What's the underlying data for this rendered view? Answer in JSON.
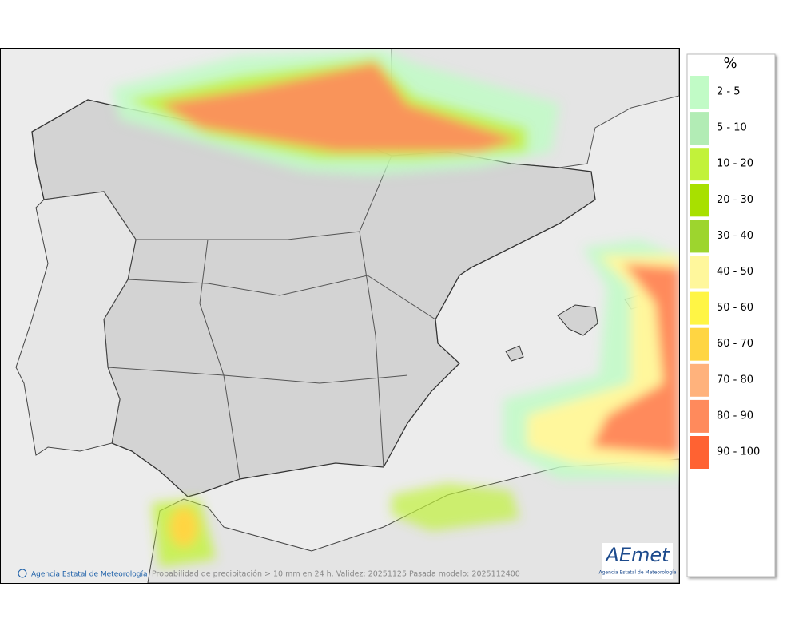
{
  "legend": {
    "title": "%",
    "items": [
      {
        "label": "2 - 5",
        "color": "#c1fbc6"
      },
      {
        "label": "5 - 10",
        "color": "#b2ecb5"
      },
      {
        "label": "10 - 20",
        "color": "#c2f23a"
      },
      {
        "label": "20 - 30",
        "color": "#a8e000"
      },
      {
        "label": "30 - 40",
        "color": "#9dd52e"
      },
      {
        "label": "40 - 50",
        "color": "#fff79c"
      },
      {
        "label": "50 - 60",
        "color": "#fff545"
      },
      {
        "label": "60 - 70",
        "color": "#ffd542"
      },
      {
        "label": "70 - 80",
        "color": "#ffb27c"
      },
      {
        "label": "80 - 90",
        "color": "#ff8a5c"
      },
      {
        "label": "90 - 100",
        "color": "#ff6232"
      }
    ]
  },
  "footer": {
    "credit": "Agencia Estatal de Meteorología",
    "caption": "Probabilidad de precipitación > 10 mm en 24 h. Validez: 20251125 Pasada modelo: 2025112400"
  },
  "logo": {
    "name": "AEmet",
    "subtitle": "Agencia Estatal de Meteorología"
  }
}
